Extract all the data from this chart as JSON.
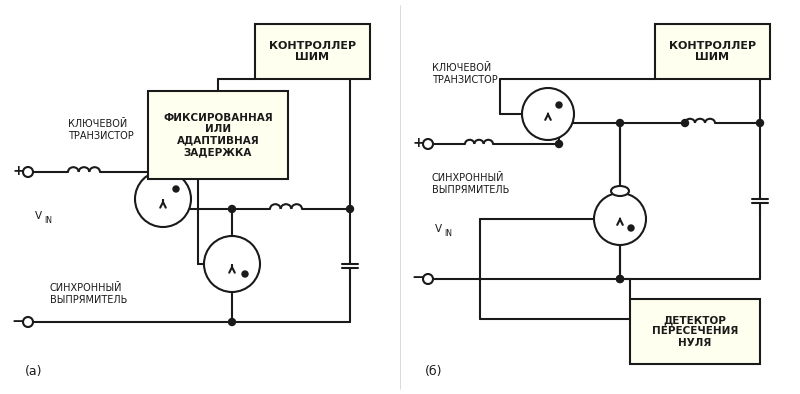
{
  "bg_color": "#ffffff",
  "box_fill": "#fffff0",
  "box_edge": "#1a1a1a",
  "line_color": "#1a1a1a",
  "text_color": "#1a1a1a",
  "fig_width": 8.0,
  "fig_height": 3.94,
  "label_a": "(а)",
  "label_b": "(б)",
  "box_a_title": "КОНТРОЛЛЕР\nШИМ",
  "box_a_delay": "ФИКСИРОВАННАЯ\nИЛИ\nАДАПТИВНАЯ\nЗАДЕРЖКА",
  "label_key_a": "КЛЮЧЕВОЙ\nТРАНЗИСТОР",
  "label_syn_a": "СИНХРОННЫЙ\nВЫПРЯМИТЕЛЬ",
  "label_vin_a": "V",
  "label_vin_a_sub": "IN",
  "label_plus_a": "+",
  "label_minus_a": "−",
  "box_b_title": "КОНТРОЛЛЕР\nШИМ",
  "box_b_detect": "ДЕТЕКТОР\nПЕРЕСЕЧЕНИЯ\nНУЛЯ",
  "label_key_b": "КЛЮЧЕВОЙ\nТРАНЗИСТОР",
  "label_syn_b": "СИНХРОННЫЙ\nВЫПРЯМИТЕЛЬ",
  "label_vin_b": "V",
  "label_vin_b_sub": "IN",
  "label_plus_b": "+",
  "label_minus_b": "−"
}
